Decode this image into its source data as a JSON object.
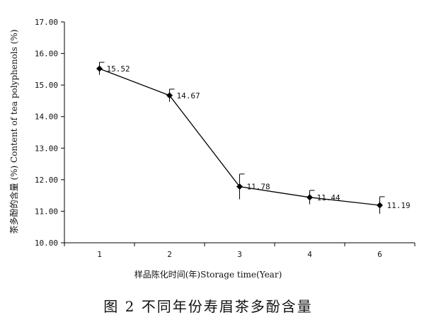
{
  "chart_data": {
    "type": "line",
    "x": [
      "1",
      "2",
      "3",
      "4",
      "6"
    ],
    "values": [
      15.52,
      14.67,
      11.78,
      11.44,
      11.19
    ],
    "data_labels": [
      "15.52",
      "14.67",
      "11.78",
      "11.44",
      "11.19"
    ],
    "errors": [
      0.2,
      0.2,
      0.4,
      0.22,
      0.27
    ],
    "ylim": [
      10.0,
      17.0
    ],
    "yticks": [
      "10.00",
      "11.00",
      "12.00",
      "13.00",
      "14.00",
      "15.00",
      "16.00",
      "17.00"
    ],
    "ylabel": "茶多酚的含量 (%) Content of tea polyphenols (%)",
    "xlabel": "样品陈化时间(年)Storage time(Year)",
    "grid": false,
    "legend": "none",
    "marker": "diamond",
    "line_color": "#000000"
  },
  "caption": "图 2   不同年份寿眉茶多酚含量"
}
